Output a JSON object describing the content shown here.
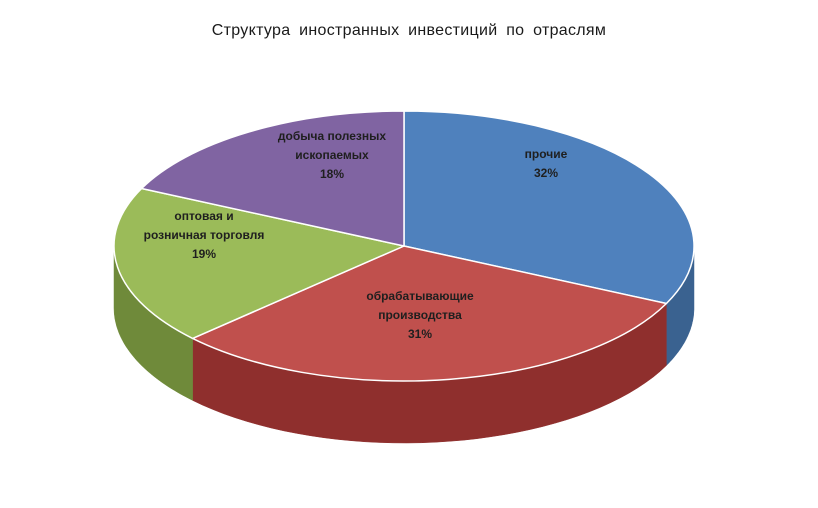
{
  "chart_data": {
    "type": "pie",
    "title": "Структура  иностранных  инвестиций  по отраслям",
    "slices": [
      {
        "label_lines": [
          "прочие"
        ],
        "percent_label": "32%",
        "value": 32,
        "color": "#4F81BD",
        "side_color": "#3a6290"
      },
      {
        "label_lines": [
          "обрабатывающие",
          "производства"
        ],
        "percent_label": "31%",
        "value": 31,
        "color": "#C0504D",
        "side_color": "#8f2f2d"
      },
      {
        "label_lines": [
          "оптовая и",
          "розничная торговля"
        ],
        "percent_label": "19%",
        "value": 19,
        "color": "#9BBB59",
        "side_color": "#6f8a3a"
      },
      {
        "label_lines": [
          "добыча полезных",
          "ископаемых"
        ],
        "percent_label": "18%",
        "value": 18,
        "color": "#8064A2",
        "side_color": "#5a4578"
      }
    ]
  }
}
